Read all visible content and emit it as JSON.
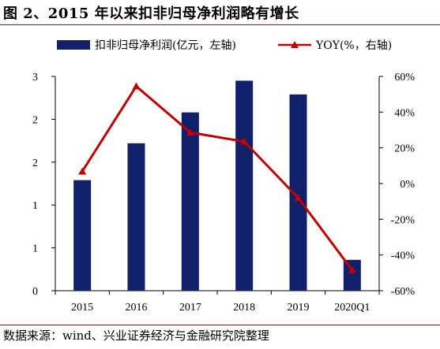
{
  "header": {
    "title": "图 2、2015 年以来扣非归母净利润略有增长"
  },
  "footer": {
    "source": "数据来源：wind、兴业证券经济与金融研究院整理"
  },
  "colors": {
    "bar": "#10206b",
    "line": "#c00000",
    "rule": "#8a1c1c"
  },
  "chart_data": {
    "type": "bar+line",
    "title": "",
    "categories": [
      "2015",
      "2016",
      "2017",
      "2018",
      "2019",
      "2020Q1"
    ],
    "series": [
      {
        "name": "扣非归母净利润(亿元，左轴)",
        "type": "bar",
        "axis": "left",
        "values": [
          1.29,
          1.72,
          2.08,
          2.45,
          2.29,
          0.36
        ]
      },
      {
        "name": "YOY(%，右轴)",
        "type": "line",
        "axis": "right",
        "marker": "triangle",
        "values": [
          6.8,
          54.5,
          28.6,
          23.5,
          -8.0,
          -48.5
        ]
      }
    ],
    "left_axis": {
      "ylim": [
        0,
        2.5
      ],
      "tick_values": [
        0,
        0.5,
        1,
        1.5,
        2,
        2.5
      ],
      "tick_labels": [
        "0",
        "1",
        "1",
        "2",
        "2",
        "3"
      ]
    },
    "right_axis": {
      "ylim": [
        -60,
        60
      ],
      "tick_values": [
        -60,
        -40,
        -20,
        0,
        20,
        40,
        60
      ],
      "tick_labels": [
        "-60%",
        "-40%",
        "-20%",
        "0%",
        "20%",
        "40%",
        "60%"
      ]
    },
    "grid": false,
    "legend_position": "top"
  }
}
